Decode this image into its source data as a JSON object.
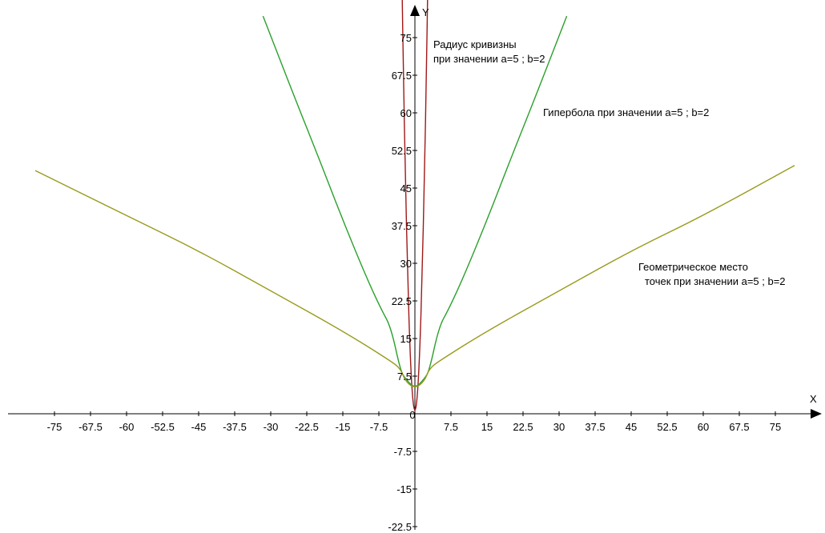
{
  "chart_data": {
    "type": "line",
    "xlabel": "X",
    "ylabel": "Y",
    "xlim": [
      -84,
      84
    ],
    "ylim": [
      -24,
      89
    ],
    "grid": false,
    "x_ticks": [
      "-75",
      "-67.5",
      "-60",
      "-52.5",
      "-45",
      "-37.5",
      "-30",
      "-22.5",
      "-15",
      "-7.5",
      "7.5",
      "15",
      "22.5",
      "30",
      "37.5",
      "45",
      "52.5",
      "60",
      "67.5",
      "75"
    ],
    "y_ticks": [
      "75",
      "67.5",
      "60",
      "52.5",
      "45",
      "37.5",
      "30",
      "22.5",
      "15",
      "7.5",
      "-7.5",
      "-15",
      "-22.5"
    ],
    "series": [
      {
        "label_lines": [
          "Радиус кривизны",
          "при значении a=5 ; b=2"
        ],
        "color": "#a01818",
        "x": [
          -2.7,
          -2.4,
          -2.0,
          -1.5,
          -1.0,
          -0.5,
          0,
          0.5,
          1.0,
          1.5,
          2.0,
          2.4,
          2.7
        ],
        "y": [
          87,
          68,
          48,
          27,
          12,
          3,
          0,
          3,
          12,
          27,
          48,
          68,
          87
        ]
      },
      {
        "label_lines": [
          "Гипербола при значении a=5 ; b=2"
        ],
        "color": "#2aa02a",
        "x": [
          -31.6,
          -25,
          -20,
          -15,
          -10,
          -7,
          -5,
          -3,
          -2,
          0,
          2,
          3,
          5,
          7,
          10,
          15,
          20,
          25,
          31.6
        ],
        "y": [
          79.3,
          63,
          51,
          38.6,
          27,
          20.8,
          17.3,
          8.6,
          7,
          5,
          7,
          8.6,
          17.3,
          20.8,
          27,
          38.6,
          51,
          63,
          79.3
        ]
      },
      {
        "label_lines": [
          "Геометрическое место",
          "точек при значении a=5 ; b=2"
        ],
        "color": "#9a9a1e",
        "x": [
          -79,
          -60,
          -45,
          -30,
          -15,
          -5,
          -3,
          -2,
          0,
          2,
          3,
          5,
          15,
          30,
          45,
          60,
          79
        ],
        "y": [
          48.5,
          39.5,
          32.5,
          24.5,
          16.5,
          10.5,
          9,
          6.5,
          5,
          6.5,
          9,
          10.5,
          16.5,
          24.5,
          32.5,
          39.5,
          49.5
        ]
      }
    ]
  }
}
